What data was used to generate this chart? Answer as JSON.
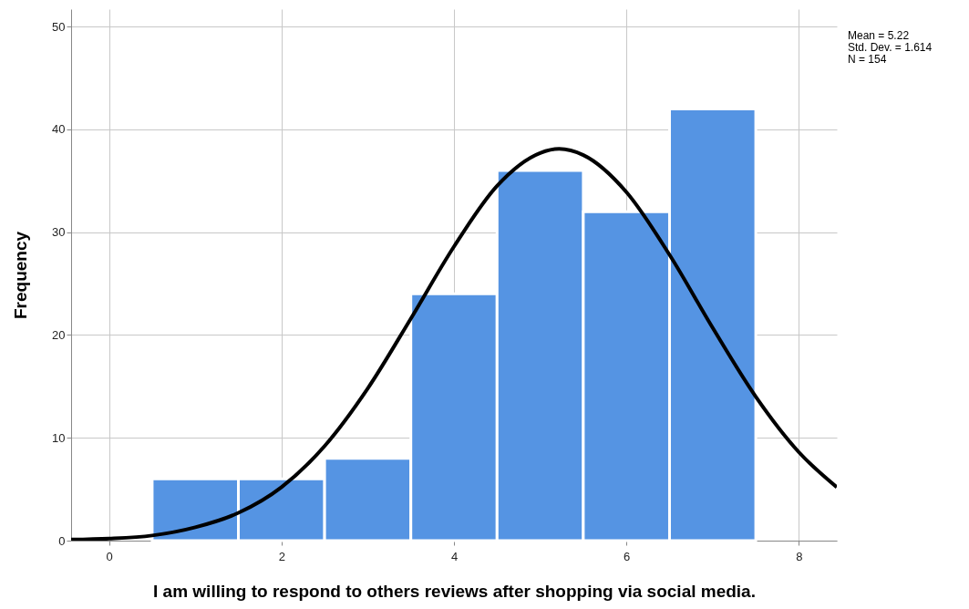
{
  "chart_data": {
    "type": "histogram",
    "xlabel": "I am willing to respond to others reviews after shopping via social media.",
    "ylabel": "Frequency",
    "bins": [
      0.5,
      1.5,
      2.5,
      3.5,
      4.5,
      5.5,
      6.5,
      7.5
    ],
    "series": [
      {
        "color": "#5594e3",
        "values": [
          6,
          6,
          8,
          24,
          36,
          32,
          42
        ]
      },
      {
        "type": "line",
        "color": "#000000",
        "x": [
          -0.44,
          0,
          0.5,
          1,
          1.5,
          2,
          2.5,
          3,
          3.5,
          4,
          4.5,
          5,
          5.22,
          5.5,
          6,
          6.5,
          7,
          7.5,
          8,
          8.44
        ],
        "values": [
          0.1,
          0.2,
          0.5,
          1.3,
          2.7,
          5.2,
          9.2,
          14.8,
          21.6,
          28.6,
          34.5,
          37.7,
          38.1,
          37.5,
          33.9,
          27.8,
          20.7,
          14.0,
          8.6,
          5.2
        ]
      }
    ],
    "xlim": [
      -0.44,
      8.44
    ],
    "xticks": [
      0,
      2,
      4,
      6,
      8
    ],
    "ylim": [
      0,
      51.7
    ],
    "yticks": [
      0,
      10,
      20,
      30,
      40,
      50
    ],
    "grid": true,
    "annotations": [
      "Mean = 5.22",
      "Std. Dev. = 1.614",
      "N = 154"
    ]
  }
}
